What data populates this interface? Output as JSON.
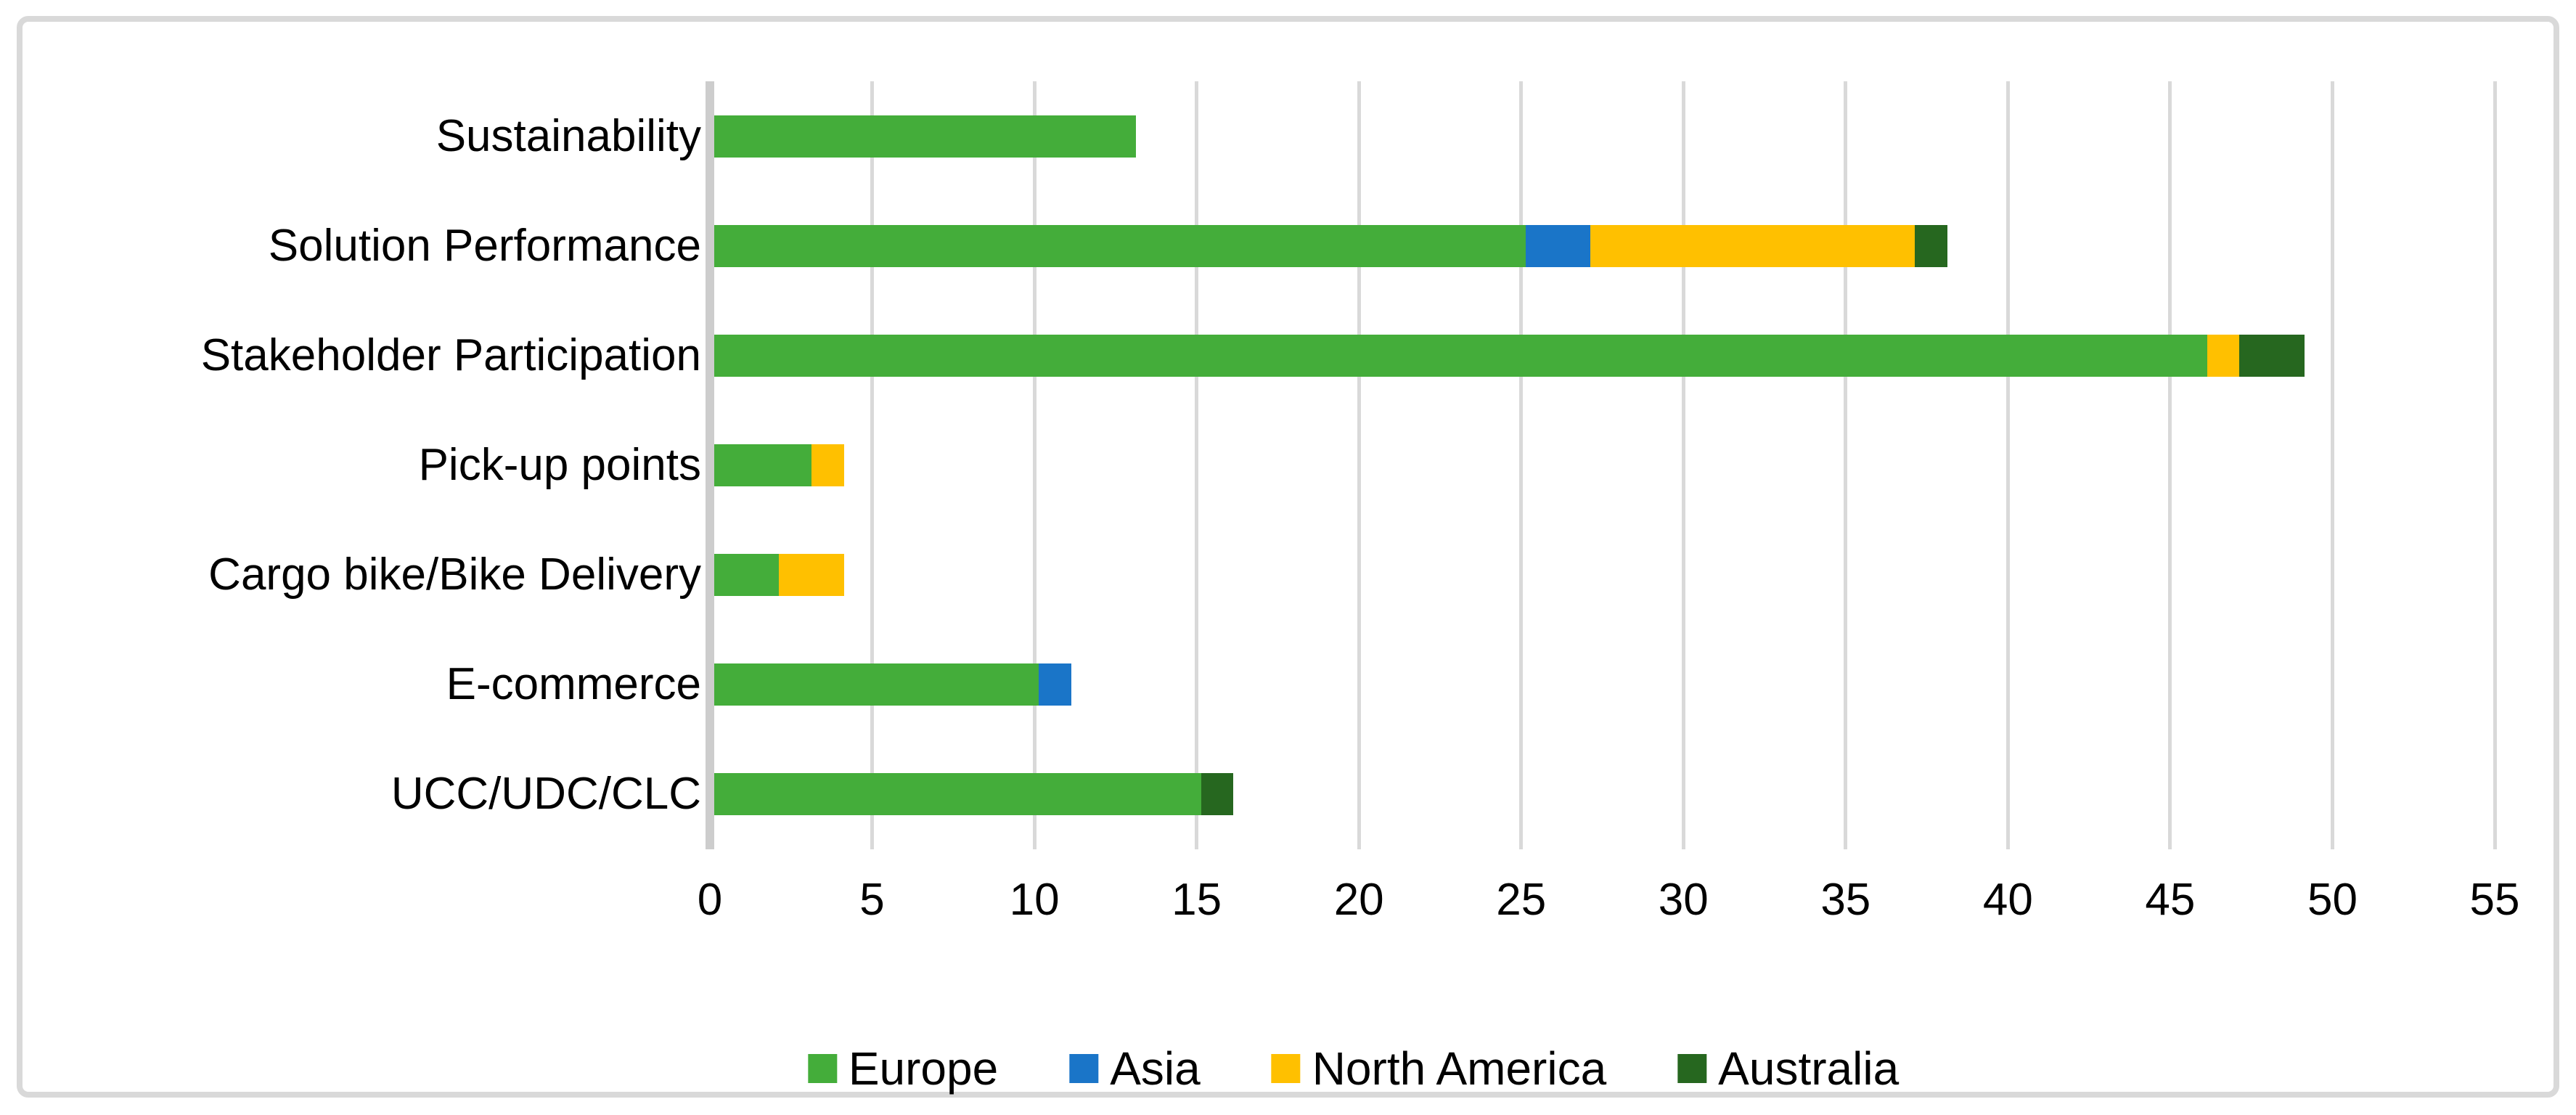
{
  "chart_data": {
    "type": "bar",
    "subtype": "horizontal-stacked",
    "title": "",
    "xlabel": "",
    "ylabel": "",
    "categories": [
      "Sustainability",
      "Solution Performance",
      "Stakeholder Participation",
      "Pick-up points",
      "Cargo bike/Bike Delivery",
      "E-commerce",
      "UCC/UDC/CLC"
    ],
    "series": [
      {
        "name": "Europe",
        "color": "#44AD3A",
        "values": [
          13,
          25,
          46,
          3,
          2,
          10,
          15
        ]
      },
      {
        "name": "Asia",
        "color": "#1A75C8",
        "values": [
          0,
          2,
          0,
          0,
          0,
          1,
          0
        ]
      },
      {
        "name": "North America",
        "color": "#FFC000",
        "values": [
          0,
          10,
          1,
          1,
          2,
          0,
          0
        ]
      },
      {
        "name": "Australia",
        "color": "#26671F",
        "values": [
          0,
          1,
          2,
          0,
          0,
          0,
          1
        ]
      }
    ],
    "stack_totals": [
      13,
      38,
      49,
      4,
      4,
      11,
      16
    ],
    "xlim": [
      0,
      55
    ],
    "xticks": [
      0,
      5,
      10,
      15,
      20,
      25,
      30,
      35,
      40,
      45,
      50,
      55
    ],
    "grid": true,
    "legend_position": "bottom",
    "legend_labels": [
      "Europe",
      "Asia",
      "North America",
      "Australia"
    ]
  },
  "style": {
    "background": "#FFFFFF",
    "frame_border_color": "#D9D9D9",
    "gridline_color": "#D9D9D9",
    "axis_line_color": "#CDCDCD",
    "text_color": "#000000"
  }
}
